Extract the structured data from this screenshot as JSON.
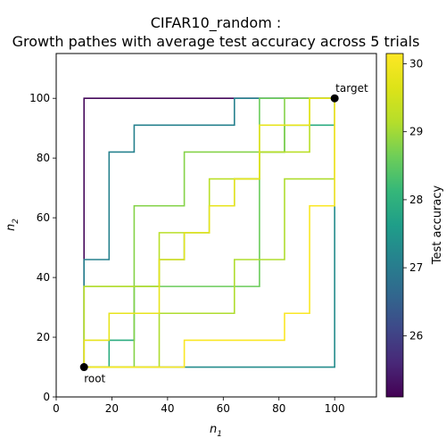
{
  "chart_data": {
    "type": "line",
    "title": "CIFAR10_random :",
    "subtitle": "Growth pathes with average test accuracy across 5 trials",
    "xlabel": "n",
    "xlabel_sub": "1",
    "ylabel": "n",
    "ylabel_sub": "2",
    "xlim": [
      0,
      115
    ],
    "ylim": [
      0,
      115
    ],
    "xticks": [
      0,
      20,
      40,
      60,
      80,
      100
    ],
    "yticks": [
      0,
      20,
      40,
      60,
      80,
      100
    ],
    "grid": false,
    "legend": "none",
    "colorbar": {
      "label": "Test accuracy",
      "range": [
        25.1,
        30.15
      ],
      "ticks": [
        26,
        27,
        28,
        29,
        30
      ],
      "colormap": "viridis"
    },
    "points": [
      {
        "label": "root",
        "x": 10,
        "y": 10
      },
      {
        "label": "target",
        "x": 100,
        "y": 100
      }
    ],
    "series": [
      {
        "accuracy": 25.2,
        "points": [
          [
            10,
            10
          ],
          [
            10,
            100
          ],
          [
            64,
            100
          ],
          [
            100,
            100
          ]
        ]
      },
      {
        "accuracy": 27.1,
        "points": [
          [
            10,
            10
          ],
          [
            10,
            46
          ],
          [
            19,
            46
          ],
          [
            19,
            82
          ],
          [
            28,
            82
          ],
          [
            28,
            91
          ],
          [
            64,
            91
          ],
          [
            64,
            100
          ],
          [
            100,
            100
          ]
        ]
      },
      {
        "accuracy": 27.3,
        "points": [
          [
            10,
            10
          ],
          [
            100,
            10
          ],
          [
            100,
            100
          ]
        ]
      },
      {
        "accuracy": 27.9,
        "points": [
          [
            10,
            10
          ],
          [
            19,
            10
          ],
          [
            19,
            19
          ],
          [
            28,
            19
          ],
          [
            28,
            37
          ],
          [
            37,
            37
          ],
          [
            37,
            46
          ],
          [
            46,
            46
          ],
          [
            46,
            55
          ],
          [
            55,
            55
          ],
          [
            55,
            64
          ],
          [
            64,
            64
          ],
          [
            64,
            73
          ],
          [
            73,
            73
          ],
          [
            73,
            82
          ],
          [
            82,
            82
          ],
          [
            82,
            91
          ],
          [
            91,
            91
          ],
          [
            100,
            91
          ],
          [
            100,
            100
          ]
        ]
      },
      {
        "accuracy": 28.6,
        "points": [
          [
            10,
            10
          ],
          [
            10,
            37
          ],
          [
            73,
            37
          ],
          [
            73,
            100
          ],
          [
            100,
            100
          ]
        ]
      },
      {
        "accuracy": 28.8,
        "points": [
          [
            10,
            10
          ],
          [
            28,
            10
          ],
          [
            28,
            64
          ],
          [
            46,
            64
          ],
          [
            46,
            82
          ],
          [
            82,
            82
          ],
          [
            82,
            100
          ],
          [
            100,
            100
          ]
        ]
      },
      {
        "accuracy": 29.1,
        "points": [
          [
            10,
            10
          ],
          [
            37,
            10
          ],
          [
            37,
            28
          ],
          [
            64,
            28
          ],
          [
            64,
            46
          ],
          [
            82,
            46
          ],
          [
            82,
            73
          ],
          [
            100,
            73
          ],
          [
            100,
            100
          ]
        ]
      },
      {
        "accuracy": 29.2,
        "points": [
          [
            10,
            10
          ],
          [
            10,
            19
          ],
          [
            10,
            37
          ],
          [
            37,
            37
          ],
          [
            37,
            55
          ],
          [
            55,
            55
          ],
          [
            55,
            73
          ],
          [
            73,
            73
          ],
          [
            73,
            82
          ],
          [
            82,
            82
          ],
          [
            91,
            82
          ],
          [
            91,
            100
          ],
          [
            100,
            100
          ]
        ]
      },
      {
        "accuracy": 29.8,
        "points": [
          [
            10,
            10
          ],
          [
            10,
            19
          ],
          [
            19,
            19
          ],
          [
            19,
            28
          ],
          [
            37,
            28
          ],
          [
            37,
            46
          ],
          [
            46,
            46
          ],
          [
            46,
            55
          ],
          [
            55,
            55
          ],
          [
            55,
            64
          ],
          [
            64,
            64
          ],
          [
            64,
            73
          ],
          [
            73,
            73
          ],
          [
            73,
            91
          ],
          [
            82,
            91
          ],
          [
            91,
            91
          ],
          [
            91,
            100
          ],
          [
            100,
            100
          ]
        ]
      },
      {
        "accuracy": 30.1,
        "points": [
          [
            10,
            10
          ],
          [
            46,
            10
          ],
          [
            46,
            19
          ],
          [
            82,
            19
          ],
          [
            82,
            28
          ],
          [
            91,
            28
          ],
          [
            91,
            64
          ],
          [
            100,
            64
          ],
          [
            100,
            100
          ]
        ]
      }
    ]
  }
}
